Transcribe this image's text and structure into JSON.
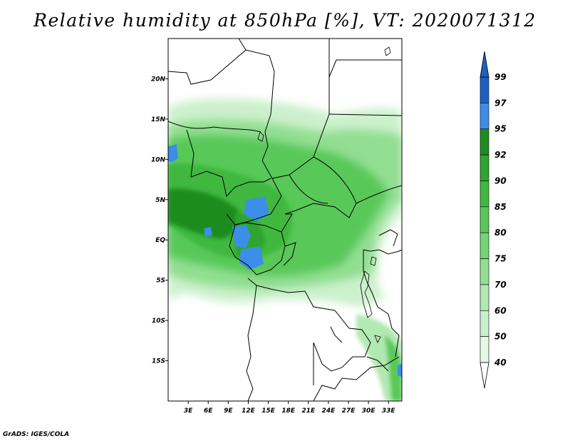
{
  "title": "Relative humidity at 850hPa [%], VT: 2020071312",
  "credit": "GrADS: IGES/COLA",
  "map": {
    "lon_range": [
      0,
      35
    ],
    "lat_range": [
      -20,
      25
    ],
    "lat_labels": [
      "20N",
      "15N",
      "10N",
      "5N",
      "EQ",
      "5S",
      "10S",
      "15S"
    ],
    "lat_values": [
      20,
      15,
      10,
      5,
      0,
      -5,
      -10,
      -15
    ],
    "lon_labels": [
      "3E",
      "6E",
      "9E",
      "12E",
      "15E",
      "18E",
      "21E",
      "24E",
      "27E",
      "30E",
      "33E"
    ],
    "lon_values": [
      3,
      6,
      9,
      12,
      15,
      18,
      21,
      24,
      27,
      30,
      33
    ]
  },
  "colorbar": {
    "levels": [
      "99",
      "97",
      "95",
      "92",
      "90",
      "85",
      "80",
      "75",
      "70",
      "60",
      "50",
      "40"
    ],
    "colors": [
      "#1d5fc4",
      "#3c8ee8",
      "#1e8c1e",
      "#2ea52e",
      "#40b840",
      "#58c858",
      "#74d474",
      "#92de92",
      "#b2e8b2",
      "#ccf0cc",
      "#e6f8e6"
    ],
    "top_arrow_color": "#1d5fc4",
    "bottom_arrow_color": "#ffffff"
  }
}
